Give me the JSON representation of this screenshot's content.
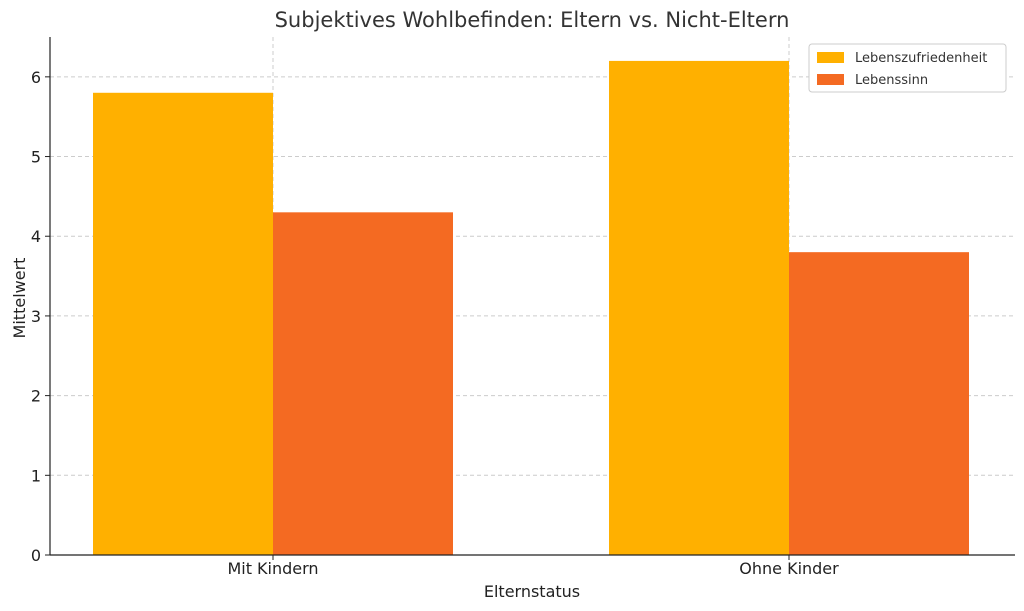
{
  "chart_data": {
    "type": "bar",
    "title": "Subjektives Wohlbefinden: Eltern vs. Nicht-Eltern",
    "xlabel": "Elternstatus",
    "ylabel": "Mittelwert",
    "categories": [
      "Mit Kindern",
      "Ohne Kinder"
    ],
    "series": [
      {
        "name": "Lebenszufriedenheit",
        "values": [
          5.8,
          6.2
        ],
        "color": "#FFB000"
      },
      {
        "name": "Lebenssinn",
        "values": [
          4.3,
          3.8
        ],
        "color": "#F46A22"
      }
    ],
    "ylim": [
      0,
      6.5
    ],
    "yticks": [
      0,
      1,
      2,
      3,
      4,
      5,
      6
    ],
    "grid": true,
    "legend_position": "top-right"
  }
}
